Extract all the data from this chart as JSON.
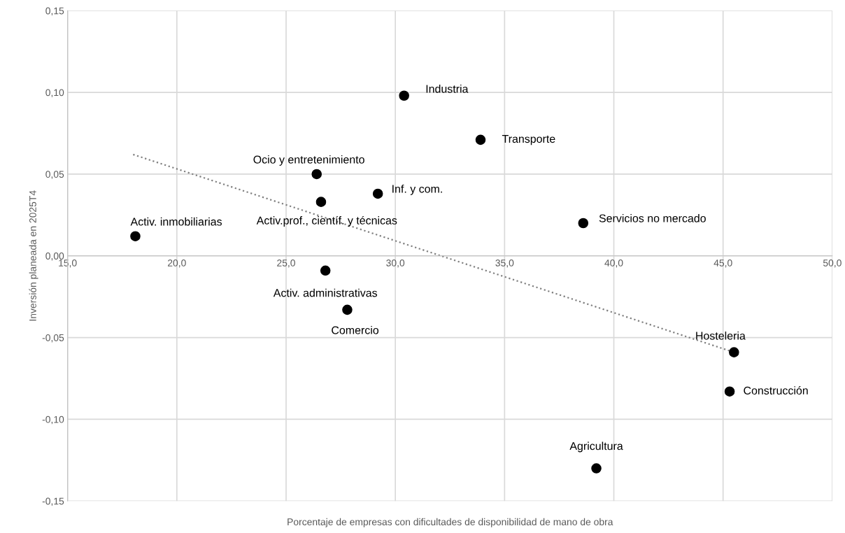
{
  "chart_data": {
    "type": "scatter",
    "xlabel": "Porcentaje de empresas con dificultades de disponibilidad de mano de obra",
    "ylabel": "Inversión planeada en 2025T4",
    "series": [
      {
        "color": "#000000",
        "marker": "circle",
        "x": [
          18.1,
          30.4,
          33.9,
          26.4,
          29.2,
          26.6,
          38.6,
          26.8,
          27.8,
          45.5,
          45.3,
          39.2
        ],
        "values": [
          0.012,
          0.098,
          0.071,
          0.05,
          0.038,
          0.033,
          0.02,
          -0.009,
          -0.033,
          -0.059,
          -0.083,
          -0.13
        ]
      },
      {
        "type": "line",
        "color": "#808080",
        "line_style": "dotted",
        "marker": "none",
        "x": [
          18.0,
          45.5
        ],
        "values": [
          0.062,
          -0.059
        ]
      }
    ],
    "annotations": [
      {
        "text": "Activ. inmobiliarias",
        "x": 18.1,
        "y": 0.012
      },
      {
        "text": "Industria",
        "x": 30.4,
        "y": 0.098
      },
      {
        "text": "Transporte",
        "x": 33.9,
        "y": 0.071
      },
      {
        "text": "Ocio y entretenimiento",
        "x": 26.4,
        "y": 0.05
      },
      {
        "text": "Inf. y com.",
        "x": 29.2,
        "y": 0.038
      },
      {
        "text": "Activ.prof., científ. y técnicas",
        "x": 26.6,
        "y": 0.033
      },
      {
        "text": "Servicios no mercado",
        "x": 38.6,
        "y": 0.02
      },
      {
        "text": "Activ. administrativas",
        "x": 26.8,
        "y": -0.009
      },
      {
        "text": "Comercio",
        "x": 27.8,
        "y": -0.033
      },
      {
        "text": "Hosteleria",
        "x": 45.5,
        "y": -0.059
      },
      {
        "text": "Construcción",
        "x": 45.3,
        "y": -0.083
      },
      {
        "text": "Agricultura",
        "x": 39.2,
        "y": -0.13
      }
    ],
    "xlim": [
      15,
      50
    ],
    "xticks": [
      {
        "value": 15,
        "label": "15,0"
      },
      {
        "value": 20,
        "label": "20,0"
      },
      {
        "value": 25,
        "label": "25,0"
      },
      {
        "value": 30,
        "label": "30,0"
      },
      {
        "value": 35,
        "label": "35,0"
      },
      {
        "value": 40,
        "label": "40,0"
      },
      {
        "value": 45,
        "label": "45,0"
      },
      {
        "value": 50,
        "label": "50,0"
      }
    ],
    "ylim": [
      -0.15,
      0.15
    ],
    "yticks": [
      {
        "value": -0.15,
        "label": "-0,15"
      },
      {
        "value": -0.1,
        "label": "-0,10"
      },
      {
        "value": -0.05,
        "label": "-0,05"
      },
      {
        "value": 0,
        "label": "0,00"
      },
      {
        "value": 0.05,
        "label": "0,05"
      },
      {
        "value": 0.1,
        "label": "0,10"
      },
      {
        "value": 0.15,
        "label": "0,15"
      }
    ],
    "grid": true
  }
}
